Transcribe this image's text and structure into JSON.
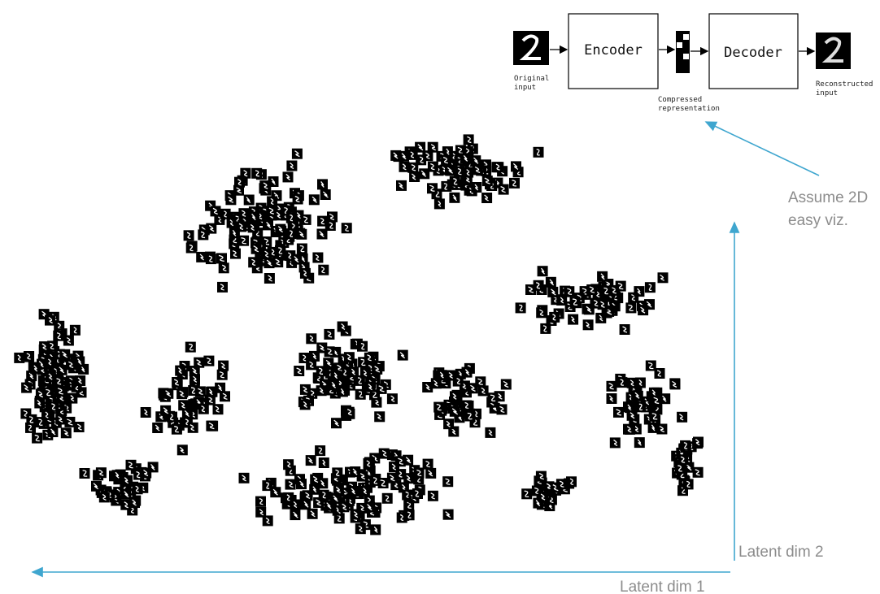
{
  "diagram": {
    "encoder": "Encoder",
    "decoder": "Decoder",
    "input_label": [
      "Original",
      "input"
    ],
    "code_label": [
      "Compressed",
      "representation"
    ],
    "output_label": [
      "Reconstructed",
      "input"
    ]
  },
  "annotation": [
    "Assume 2D",
    "easy viz."
  ],
  "axes": {
    "x_label": "Latent dim 1",
    "y_label": "Latent dim 2"
  }
}
